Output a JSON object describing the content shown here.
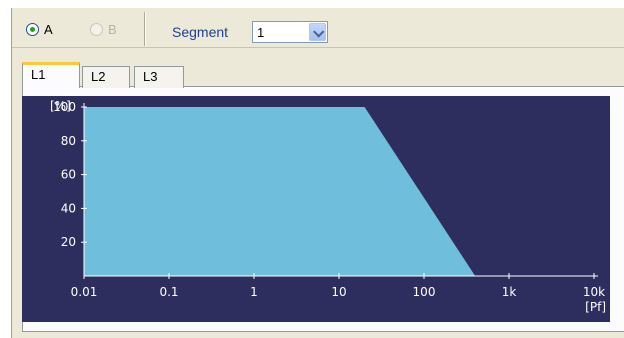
{
  "toolbar": {
    "radio_a": {
      "label": "A",
      "checked": true
    },
    "radio_b": {
      "label": "B",
      "disabled": true
    },
    "segment_label": "Segment",
    "segment_value": "1"
  },
  "tabs": [
    {
      "label": "L1",
      "active": true
    },
    {
      "label": "L2",
      "active": false
    },
    {
      "label": "L3",
      "active": false
    }
  ],
  "chart_data": {
    "type": "area",
    "x_scale": "log",
    "xlim": [
      0.01,
      10000
    ],
    "ylim": [
      0,
      100
    ],
    "xlabel": "[Pf]",
    "ylabel": "[%]",
    "x_ticks": [
      {
        "value": 0.01,
        "label": "0.01"
      },
      {
        "value": 0.1,
        "label": "0.1"
      },
      {
        "value": 1,
        "label": "1"
      },
      {
        "value": 10,
        "label": "10"
      },
      {
        "value": 100,
        "label": "100"
      },
      {
        "value": 1000,
        "label": "1k"
      },
      {
        "value": 10000,
        "label": "10k"
      }
    ],
    "y_ticks": [
      20,
      40,
      60,
      80,
      100
    ],
    "series": [
      {
        "x": [
          0.01,
          20,
          400
        ],
        "y": [
          100,
          100,
          0
        ]
      }
    ],
    "colors": {
      "background": "#2e2e5e",
      "fill": "#6fbfdc",
      "axis": "#ffffff"
    }
  }
}
